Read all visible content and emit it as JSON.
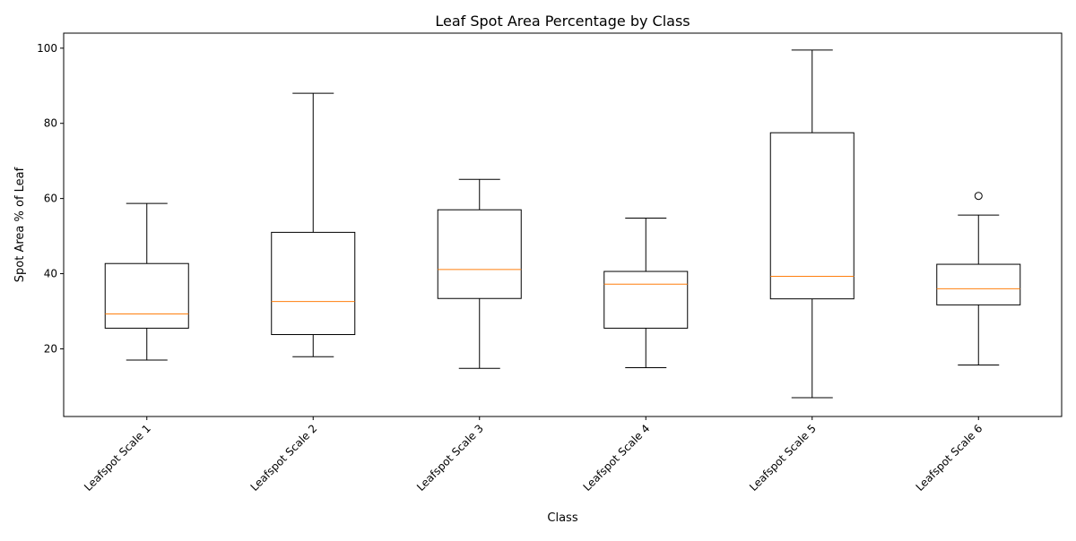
{
  "chart_data": {
    "type": "box",
    "title": "Leaf Spot Area Percentage by Class",
    "xlabel": "Class",
    "ylabel": "Spot Area % of Leaf",
    "ylim": [
      2,
      104
    ],
    "yticks": [
      20,
      40,
      60,
      80,
      100
    ],
    "grid": false,
    "categories": [
      "Leafspot Scale 1",
      "Leafspot Scale 2",
      "Leafspot Scale 3",
      "Leafspot Scale 4",
      "Leafspot Scale 5",
      "Leafspot Scale 6"
    ],
    "boxes": [
      {
        "whisker_low": 17.0,
        "q1": 25.5,
        "median": 29.3,
        "q3": 42.7,
        "whisker_high": 58.7,
        "outliers": []
      },
      {
        "whisker_low": 17.9,
        "q1": 23.8,
        "median": 32.6,
        "q3": 51.0,
        "whisker_high": 88.0,
        "outliers": []
      },
      {
        "whisker_low": 14.8,
        "q1": 33.4,
        "median": 41.1,
        "q3": 57.0,
        "whisker_high": 65.1,
        "outliers": []
      },
      {
        "whisker_low": 15.0,
        "q1": 25.5,
        "median": 37.2,
        "q3": 40.6,
        "whisker_high": 54.8,
        "outliers": []
      },
      {
        "whisker_low": 7.0,
        "q1": 33.3,
        "median": 39.3,
        "q3": 77.5,
        "whisker_high": 99.5,
        "outliers": []
      },
      {
        "whisker_low": 15.7,
        "q1": 31.7,
        "median": 36.0,
        "q3": 42.5,
        "whisker_high": 55.6,
        "outliers": [
          60.7
        ]
      }
    ],
    "colors": {
      "box": "#000000",
      "median": "#ff7f0e",
      "outlier": "#000000"
    }
  }
}
